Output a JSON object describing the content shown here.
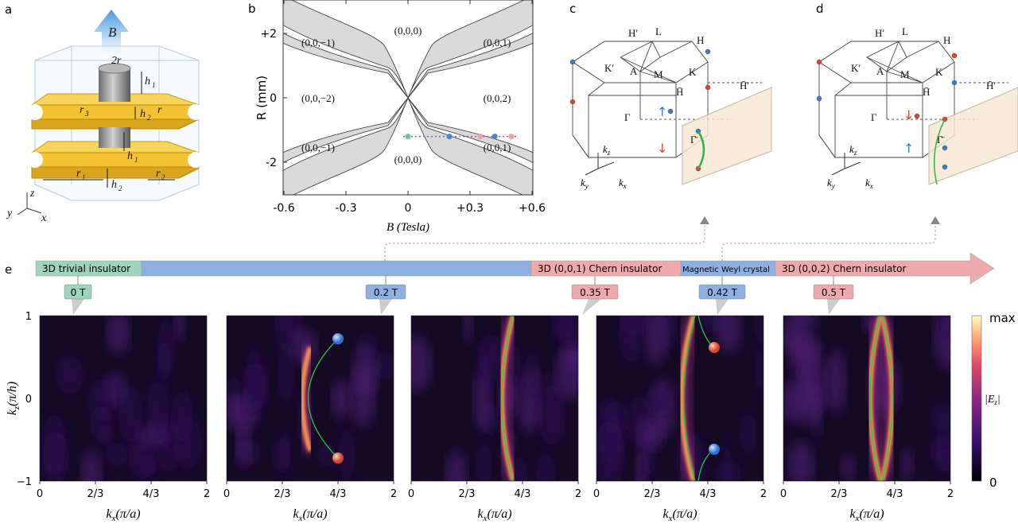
{
  "panels": {
    "a": "a",
    "b": "b",
    "c": "c",
    "d": "d",
    "e": "e"
  },
  "panel_a": {
    "field_label": "B",
    "dims": {
      "two_r": "2r",
      "h1_top": "h",
      "h1_top_sub": "1",
      "h2_top": "h",
      "h2_top_sub": "2",
      "r3": "r",
      "r3_sub": "3",
      "r": "r",
      "h1_mid": "h",
      "h1_mid_sub": "1",
      "r1": "r",
      "r1_sub": "1",
      "h2_bot": "h",
      "h2_bot_sub": "2",
      "r2": "r",
      "r2_sub": "2"
    },
    "axes": {
      "z": "z",
      "y": "y",
      "x": "x"
    },
    "colors": {
      "plate": "#f2c230",
      "cylinder": "#8c8c8c",
      "box": "#c8dbe6",
      "arrow": "#5aa6e6"
    }
  },
  "chart_data": [
    {
      "type": "phase-diagram",
      "xlabel": "B (Tesla)",
      "ylabel": "R (mm)",
      "xlim": [
        -0.6,
        0.6
      ],
      "ylim": [
        -3,
        3
      ],
      "xticks": [
        "-0.6",
        "-0.3",
        "0",
        "+0.3",
        "+0.6"
      ],
      "yticks": [
        "+2",
        "0",
        "-2"
      ],
      "regions": [
        "(0,0,0)",
        "(0,0,−1)",
        "(0,0,1)",
        "(0,0,−2)",
        "(0,0,2)",
        "(0,0,−1)",
        "(0,0,1)",
        "(0,0,0)"
      ],
      "markers": [
        {
          "B": 0,
          "R": -1.2,
          "color": "#6cc3a0"
        },
        {
          "B": 0.2,
          "R": -1.2,
          "color": "#4a84d4"
        },
        {
          "B": 0.35,
          "R": -1.2,
          "color": "#f0a0a0"
        },
        {
          "B": 0.42,
          "R": -1.2,
          "color": "#4a84d4"
        },
        {
          "B": 0.5,
          "R": -1.2,
          "color": "#f0a0a0"
        }
      ],
      "path_color": "#9b4fe0",
      "band_color": "#d9d9d9"
    },
    {
      "type": "heatmap",
      "xlabel": "k_x(π/a)",
      "ylabel": "k_z(π/h)",
      "xticks": [
        "0",
        "2/3",
        "4/3",
        "2"
      ],
      "yticks": [
        "1",
        "0",
        "−1"
      ],
      "colorbar": {
        "max": "max",
        "min": "0",
        "label": "|E_z|",
        "colors": [
          "#000004",
          "#3b0f70",
          "#8c2981",
          "#de4968",
          "#fe9f6d",
          "#fcfdbf"
        ]
      },
      "fields": [
        "0 T",
        "0.2 T",
        "0.35 T",
        "0.42 T",
        "0.5 T"
      ]
    }
  ],
  "bz": {
    "points": {
      "H_prime": "H′",
      "L": "L",
      "H": "H",
      "K_prime": "K′",
      "A": "A",
      "M": "M",
      "K": "K",
      "Gamma": "Γ",
      "H_bar": "H̄",
      "H_bar_prime": "H̄′",
      "Gamma_bar": "Γ̄"
    },
    "axes": {
      "kz": "k",
      "kz_sub": "z",
      "ky": "k",
      "ky_sub": "y",
      "kx": "k",
      "kx_sub": "x"
    }
  },
  "phase_bar": {
    "segments": [
      {
        "label": "3D trivial insulator",
        "color": "#9ed4bd"
      },
      {
        "label": "",
        "color": "#8eb0e0"
      },
      {
        "label": "3D (0,0,1) Chern insulator",
        "color": "#eeaaaa"
      },
      {
        "label": "Magnetic Weyl crystal",
        "color": "#8eb0e0"
      },
      {
        "label": "3D (0,0,2) Chern insulator",
        "color": "#eeaaaa"
      }
    ],
    "tags": [
      {
        "label": "0 T",
        "color": "#9ed4bd"
      },
      {
        "label": "0.2 T",
        "color": "#8eb0e0"
      },
      {
        "label": "0.35 T",
        "color": "#eeaaaa"
      },
      {
        "label": "0.42 T",
        "color": "#8eb0e0"
      },
      {
        "label": "0.5 T",
        "color": "#eeaaaa"
      }
    ]
  }
}
